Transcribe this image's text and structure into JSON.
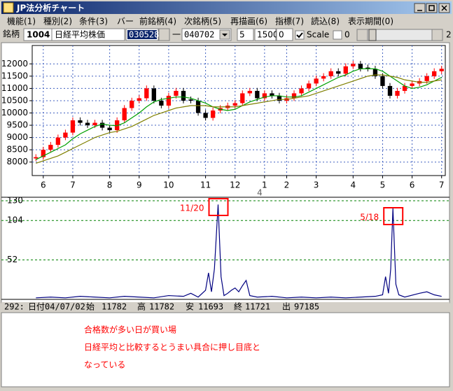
{
  "window": {
    "title": "JP法分析チャート"
  },
  "menu": [
    "機能(1)",
    "種別(2)",
    "条件(3)",
    "バー",
    "前銘柄(4)",
    "次銘柄(5)",
    "再描画(6)",
    "指標(7)",
    "読込(8)",
    "表示期間(0)"
  ],
  "toolbar": {
    "label": "銘柄",
    "code": "1004",
    "name": "日経平均株価",
    "start": "030528",
    "dash": "一",
    "end": "040702",
    "field1": "5",
    "field2": "1500",
    "field3": "0",
    "scale_label": "Scale",
    "check_label": "0",
    "right_label": "2"
  },
  "chart_data": [
    {
      "type": "candlestick",
      "xlabel": "4",
      "candles": [
        [
          8150,
          8320,
          8040,
          8200
        ],
        [
          8200,
          8620,
          8090,
          8500
        ],
        [
          8500,
          8820,
          8390,
          8700
        ],
        [
          8700,
          9120,
          8590,
          9000
        ],
        [
          9000,
          9320,
          8890,
          9200
        ],
        [
          9200,
          9820,
          9090,
          9700
        ],
        [
          9700,
          9820,
          9490,
          9600
        ],
        [
          9600,
          9720,
          9390,
          9500
        ],
        [
          9500,
          9720,
          9390,
          9600
        ],
        [
          9600,
          9720,
          9290,
          9400
        ],
        [
          9400,
          9520,
          9190,
          9300
        ],
        [
          9300,
          9820,
          9190,
          9700
        ],
        [
          9700,
          10320,
          9590,
          10200
        ],
        [
          10200,
          10620,
          10090,
          10500
        ],
        [
          10500,
          10720,
          10390,
          10600
        ],
        [
          10600,
          11120,
          10490,
          11000
        ],
        [
          11000,
          11120,
          10390,
          10500
        ],
        [
          10500,
          10620,
          10190,
          10300
        ],
        [
          10300,
          10820,
          10190,
          10700
        ],
        [
          10700,
          11020,
          10590,
          10900
        ],
        [
          10900,
          11020,
          10390,
          10500
        ],
        [
          10550,
          10670,
          10390,
          10500
        ],
        [
          10500,
          10620,
          9890,
          10000
        ],
        [
          10000,
          10120,
          9690,
          9800
        ],
        [
          9800,
          10220,
          9690,
          10100
        ],
        [
          10100,
          10320,
          9990,
          10200
        ],
        [
          10200,
          10420,
          10090,
          10300
        ],
        [
          10300,
          10520,
          10190,
          10400
        ],
        [
          10400,
          10920,
          10290,
          10800
        ],
        [
          10800,
          11020,
          10690,
          10900
        ],
        [
          10900,
          11020,
          10490,
          10600
        ],
        [
          10600,
          10920,
          10490,
          10800
        ],
        [
          10800,
          10920,
          10590,
          10700
        ],
        [
          10700,
          10820,
          10390,
          10500
        ],
        [
          10500,
          10720,
          10390,
          10600
        ],
        [
          10600,
          10920,
          10490,
          10800
        ],
        [
          10800,
          11120,
          10690,
          11000
        ],
        [
          11000,
          11320,
          10890,
          11200
        ],
        [
          11200,
          11520,
          11090,
          11400
        ],
        [
          11400,
          11620,
          11290,
          11500
        ],
        [
          11500,
          11820,
          11390,
          11700
        ],
        [
          11700,
          11820,
          11490,
          11600
        ],
        [
          11600,
          12020,
          11490,
          11900
        ],
        [
          11900,
          12120,
          11790,
          12000
        ],
        [
          12000,
          12120,
          11690,
          11800
        ],
        [
          11850,
          11970,
          11690,
          11800
        ],
        [
          11800,
          11920,
          11390,
          11500
        ],
        [
          11500,
          11620,
          10990,
          11100
        ],
        [
          11100,
          11220,
          10590,
          10700
        ],
        [
          10700,
          11020,
          10590,
          10900
        ],
        [
          10900,
          11220,
          10790,
          11100
        ],
        [
          11100,
          11320,
          10990,
          11200
        ],
        [
          11200,
          11420,
          11090,
          11300
        ],
        [
          11300,
          11620,
          11190,
          11500
        ],
        [
          11500,
          11820,
          11390,
          11700
        ],
        [
          11700,
          11920,
          11590,
          11800
        ]
      ],
      "up_color": "#ff0000",
      "down_color": "#000000",
      "series": [
        {
          "color": "#00a000",
          "values": [
            8100,
            8250,
            8400,
            8550,
            8700,
            8950,
            9150,
            9300,
            9450,
            9550,
            9500,
            9480,
            9600,
            9800,
            10000,
            10250,
            10450,
            10550,
            10600,
            10650,
            10650,
            10600,
            10500,
            10400,
            10250,
            10150,
            10100,
            10150,
            10300,
            10450,
            10550,
            10650,
            10700,
            10700,
            10650,
            10650,
            10700,
            10850,
            11000,
            11150,
            11300,
            11450,
            11550,
            11700,
            11800,
            11800,
            11800,
            11700,
            11500,
            11300,
            11100,
            11000,
            11050,
            11150,
            11300,
            11450
          ]
        },
        {
          "color": "#808000",
          "values": [
            7950,
            8050,
            8150,
            8250,
            8400,
            8550,
            8700,
            8850,
            9000,
            9100,
            9200,
            9250,
            9350,
            9450,
            9600,
            9750,
            9900,
            10000,
            10100,
            10200,
            10250,
            10300,
            10300,
            10300,
            10250,
            10250,
            10250,
            10250,
            10300,
            10350,
            10400,
            10450,
            10500,
            10550,
            10550,
            10600,
            10650,
            10700,
            10800,
            10900,
            11000,
            11100,
            11200,
            11300,
            11400,
            11500,
            11550,
            11550,
            11500,
            11450,
            11350,
            11300,
            11250,
            11250,
            11300,
            11350
          ]
        }
      ],
      "xlim": [
        -0.5,
        55.5
      ],
      "xticks": [
        {
          "value": 1,
          "label": "6"
        },
        {
          "value": 5,
          "label": "7"
        },
        {
          "value": 10,
          "label": "8"
        },
        {
          "value": 14,
          "label": "9"
        },
        {
          "value": 18,
          "label": "10"
        },
        {
          "value": 23,
          "label": "11"
        },
        {
          "value": 27,
          "label": "12"
        },
        {
          "value": 31,
          "label": "1"
        },
        {
          "value": 34,
          "label": "2"
        },
        {
          "value": 38,
          "label": "3"
        },
        {
          "value": 43,
          "label": "4"
        },
        {
          "value": 47,
          "label": "5"
        },
        {
          "value": 51,
          "label": "6"
        },
        {
          "value": 55,
          "label": "7"
        }
      ],
      "ylim": [
        7450,
        12750
      ],
      "yticks": [
        8000,
        8500,
        9000,
        9500,
        10000,
        10500,
        11000,
        11500,
        12000
      ],
      "grid": true
    },
    {
      "type": "line",
      "color": "#000080",
      "x": [
        0,
        2,
        4,
        6,
        8,
        10,
        12,
        14,
        16,
        18,
        20,
        21,
        22,
        23,
        23.4,
        23.8,
        24.2,
        24.7,
        25.1,
        25.5,
        26,
        26.5,
        27,
        27.5,
        28,
        28.5,
        29,
        30,
        32,
        34,
        36,
        38,
        40,
        42,
        44,
        46,
        47,
        47.4,
        47.8,
        48.1,
        48.4,
        48.8,
        49.2,
        50,
        52,
        53,
        54,
        55
      ],
      "values": [
        2,
        3,
        2,
        4,
        3,
        2,
        4,
        3,
        2,
        5,
        4,
        8,
        3,
        12,
        35,
        10,
        40,
        125,
        30,
        5,
        8,
        12,
        15,
        10,
        18,
        25,
        5,
        3,
        4,
        2,
        3,
        2,
        3,
        2,
        3,
        4,
        6,
        30,
        8,
        40,
        120,
        20,
        6,
        3,
        8,
        10,
        6,
        4
      ],
      "xlim": [
        -0.5,
        55.5
      ],
      "ylim": [
        0,
        130
      ],
      "yticks": [
        52,
        104,
        130
      ],
      "grid": true,
      "annotations": [
        {
          "text": "11/20",
          "x": 24.7
        },
        {
          "text": "5/18",
          "x": 48.4
        }
      ]
    }
  ],
  "status": [
    "292:",
    "日付04/07/02",
    "始",
    "11782",
    "高",
    "11782",
    "安",
    "11693",
    "終",
    "11721",
    "出",
    "97185"
  ],
  "note": [
    "合格数が多い日が買い場",
    "日経平均と比較するとうまい具合に押し目底と",
    "なっている"
  ]
}
